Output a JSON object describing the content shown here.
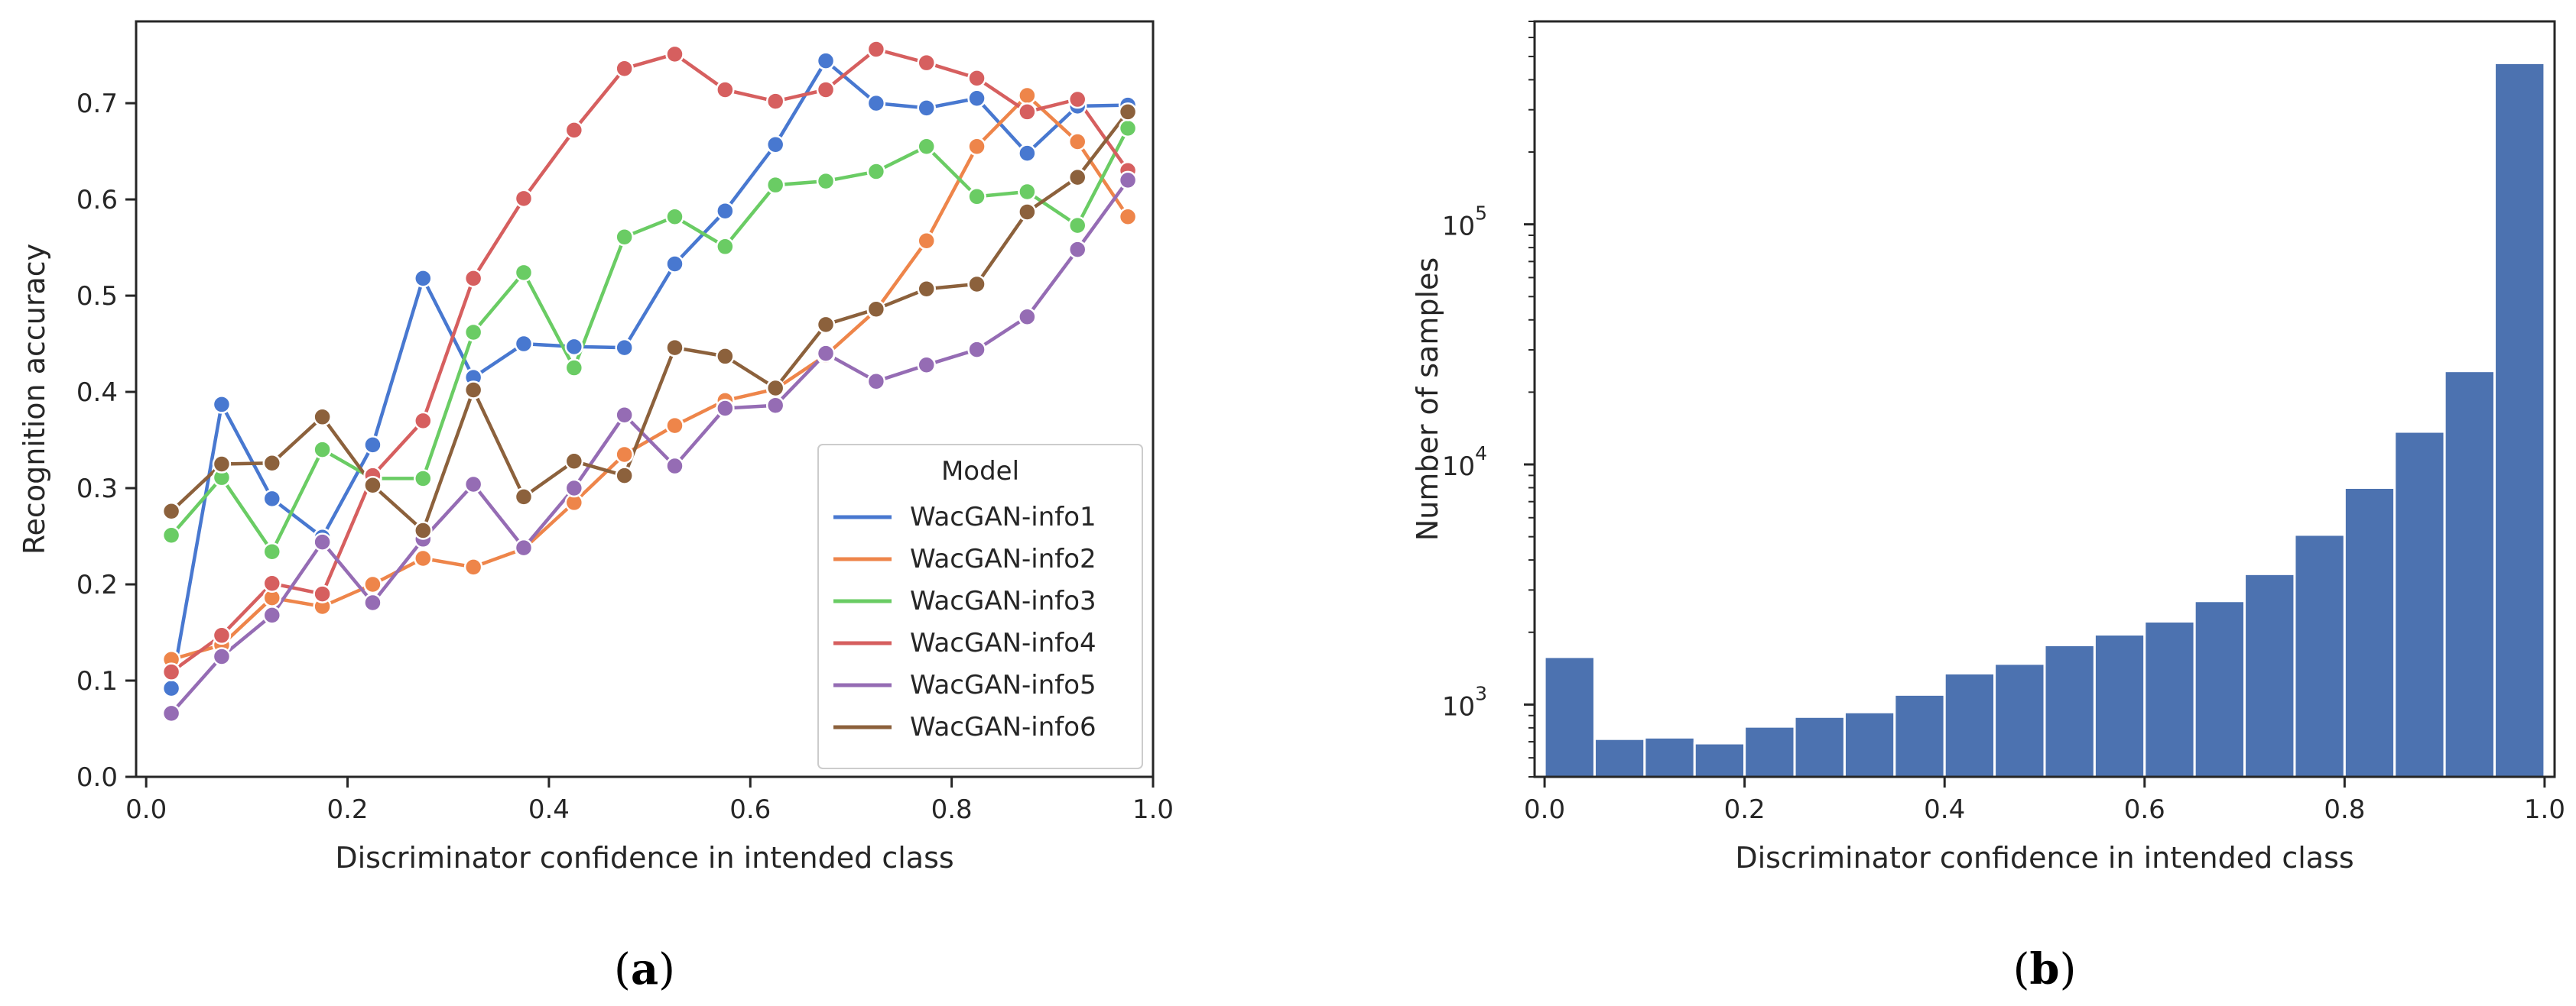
{
  "chart_data": [
    {
      "type": "line",
      "panel_label": {
        "open": "(",
        "letter": "a",
        "close": ")"
      },
      "xlabel": "Discriminator confidence in intended class",
      "ylabel": "Recognition accuracy",
      "xlim": [
        -0.01,
        1.0
      ],
      "ylim": [
        0.0,
        0.785
      ],
      "xticks": [
        0.0,
        0.2,
        0.4,
        0.6,
        0.8,
        1.0
      ],
      "xtick_labels": [
        "0.0",
        "0.2",
        "0.4",
        "0.6",
        "0.8",
        "1.0"
      ],
      "yticks": [
        0.0,
        0.1,
        0.2,
        0.3,
        0.4,
        0.5,
        0.6,
        0.7
      ],
      "ytick_labels": [
        "0.0",
        "0.1",
        "0.2",
        "0.3",
        "0.4",
        "0.5",
        "0.6",
        "0.7"
      ],
      "grid": false,
      "legend": {
        "title": "Model",
        "placement": "lower-right"
      },
      "x": [
        0.025,
        0.075,
        0.125,
        0.175,
        0.225,
        0.275,
        0.325,
        0.375,
        0.425,
        0.475,
        0.525,
        0.575,
        0.625,
        0.675,
        0.725,
        0.775,
        0.825,
        0.875,
        0.925,
        0.975
      ],
      "series": [
        {
          "name": "WacGAN-info1",
          "color": "#4878d0",
          "values": [
            0.092,
            0.387,
            0.289,
            0.249,
            0.345,
            0.518,
            0.415,
            0.45,
            0.447,
            0.446,
            0.533,
            0.588,
            0.657,
            0.744,
            0.7,
            0.695,
            0.705,
            0.648,
            0.697,
            0.698
          ]
        },
        {
          "name": "WacGAN-info2",
          "color": "#ee854a",
          "values": [
            0.122,
            0.137,
            0.186,
            0.177,
            0.2,
            0.227,
            0.218,
            0.237,
            0.285,
            0.335,
            0.365,
            0.391,
            0.403,
            0.438,
            0.485,
            0.557,
            0.655,
            0.708,
            0.66,
            0.582
          ]
        },
        {
          "name": "WacGAN-info3",
          "color": "#6acc64",
          "values": [
            0.251,
            0.311,
            0.234,
            0.34,
            0.31,
            0.31,
            0.462,
            0.524,
            0.425,
            0.561,
            0.582,
            0.551,
            0.615,
            0.619,
            0.629,
            0.655,
            0.603,
            0.608,
            0.573,
            0.674
          ]
        },
        {
          "name": "WacGAN-info4",
          "color": "#d65f5f",
          "values": [
            0.109,
            0.147,
            0.201,
            0.19,
            0.313,
            0.37,
            0.518,
            0.601,
            0.672,
            0.736,
            0.751,
            0.714,
            0.702,
            0.714,
            0.756,
            0.742,
            0.726,
            0.691,
            0.704,
            0.63
          ]
        },
        {
          "name": "WacGAN-info5",
          "color": "#956cb4",
          "values": [
            0.066,
            0.125,
            0.168,
            0.244,
            0.181,
            0.247,
            0.304,
            0.238,
            0.3,
            0.376,
            0.323,
            0.383,
            0.386,
            0.44,
            0.411,
            0.428,
            0.444,
            0.478,
            0.548,
            0.62
          ]
        },
        {
          "name": "WacGAN-info6",
          "color": "#8c613c",
          "values": [
            0.276,
            0.325,
            0.326,
            0.374,
            0.303,
            0.256,
            0.402,
            0.291,
            0.328,
            0.313,
            0.446,
            0.437,
            0.404,
            0.47,
            0.486,
            0.507,
            0.512,
            0.587,
            0.623,
            0.691
          ]
        }
      ]
    },
    {
      "type": "bar",
      "panel_label": {
        "open": "(",
        "letter": "b",
        "close": ")"
      },
      "xlabel": "Discriminator confidence in intended class",
      "ylabel": "Number of samples",
      "yscale": "log",
      "xlim": [
        -0.01,
        1.01
      ],
      "ylim": [
        500,
        700000
      ],
      "xticks": [
        0.0,
        0.2,
        0.4,
        0.6,
        0.8,
        1.0
      ],
      "xtick_labels": [
        "0.0",
        "0.2",
        "0.4",
        "0.6",
        "0.8",
        "1.0"
      ],
      "yticks_major": [
        1000,
        10000,
        100000
      ],
      "ytick_labels": [
        {
          "base": "10",
          "exp": "3"
        },
        {
          "base": "10",
          "exp": "4"
        },
        {
          "base": "10",
          "exp": "5"
        }
      ],
      "grid": false,
      "color": "#4c72b0",
      "bin_edges": [
        0.0,
        0.05,
        0.1,
        0.15,
        0.2,
        0.25,
        0.3,
        0.35,
        0.4,
        0.45,
        0.5,
        0.55,
        0.6,
        0.65,
        0.7,
        0.75,
        0.8,
        0.85,
        0.9,
        0.95,
        1.0
      ],
      "values": [
        1580,
        720,
        730,
        690,
        810,
        890,
        930,
        1100,
        1350,
        1480,
        1770,
        1960,
        2220,
        2700,
        3500,
        5100,
        8000,
        13700,
        24500,
        470000
      ]
    }
  ]
}
